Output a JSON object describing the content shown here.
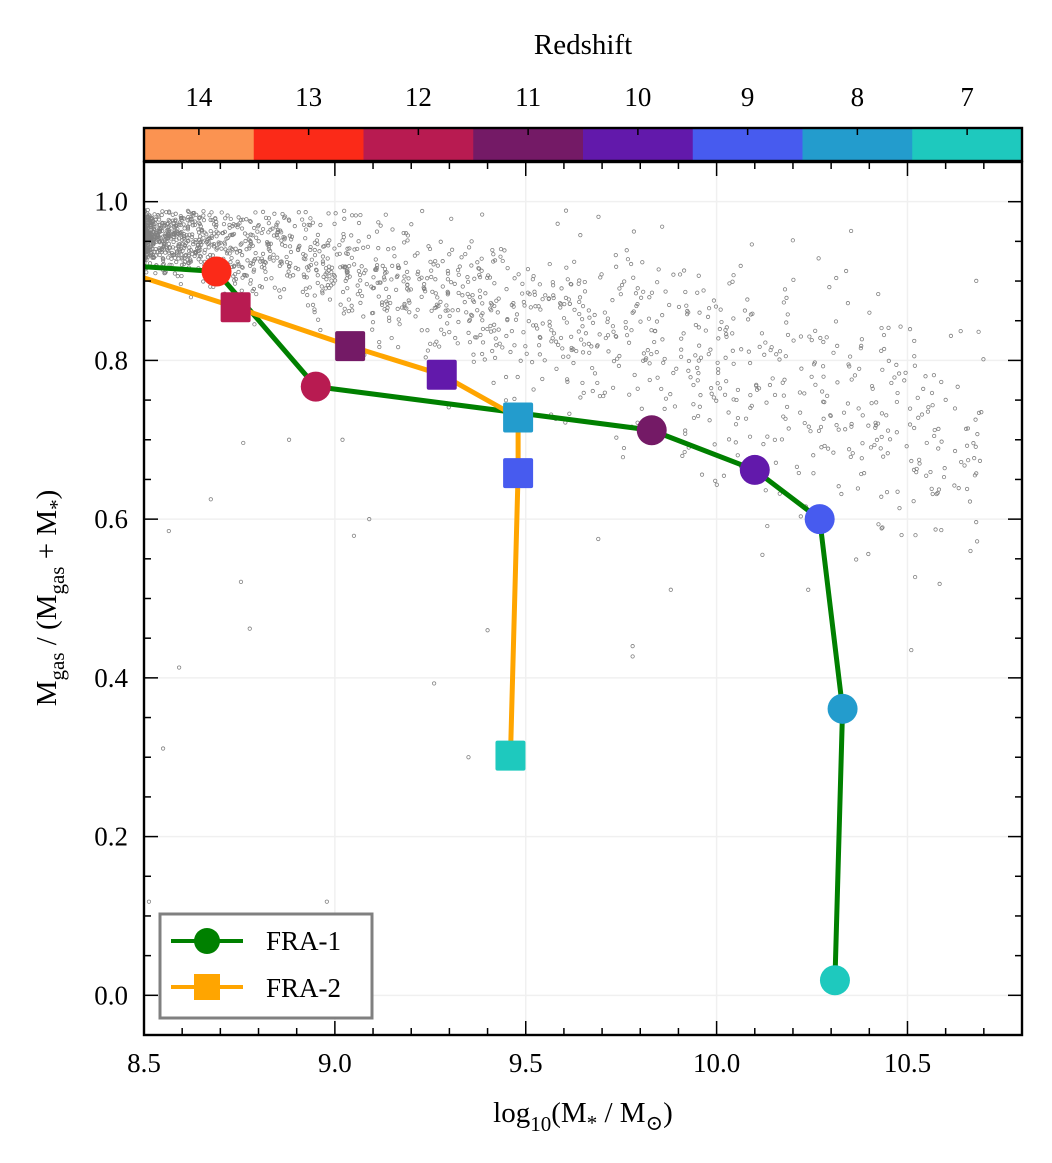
{
  "chart_data": {
    "type": "line",
    "title": "",
    "xlabel": "log10(M* / M⊙)",
    "xlabel_parts": {
      "pre": "log",
      "sub": "10",
      "mid": "(M",
      "sub2": "*",
      "post": " / M",
      "sub3": "⊙",
      "end": ")"
    },
    "ylabel": "Mgas / (Mgas + M*)",
    "ylabel_parts": {
      "m": "M",
      "gas": "gas",
      "mid": " / (M",
      "gas2": "gas",
      "plus": " + M",
      "star": "*",
      "end": ")"
    },
    "xlim": [
      8.5,
      10.8
    ],
    "ylim": [
      -0.05,
      1.05
    ],
    "xticks": [
      8.5,
      9.0,
      9.5,
      10.0,
      10.5
    ],
    "xtick_labels": [
      "8.5",
      "9.0",
      "9.5",
      "10.0",
      "10.5"
    ],
    "yticks": [
      0.0,
      0.2,
      0.4,
      0.6,
      0.8,
      1.0
    ],
    "ytick_labels": [
      "0.0",
      "0.2",
      "0.4",
      "0.6",
      "0.8",
      "1.0"
    ],
    "grid": true,
    "legend_position": "bottom-left",
    "colorbar": {
      "label": "Redshift",
      "position": "top",
      "ticks": [
        "14",
        "13",
        "12",
        "11",
        "10",
        "9",
        "8",
        "7"
      ],
      "colors": [
        "#fb9351",
        "#fb2a18",
        "#b81b51",
        "#741a66",
        "#6219ab",
        "#475bef",
        "#239ccd",
        "#1ec9be"
      ]
    },
    "series": [
      {
        "name": "FRA-1",
        "color": "#008000",
        "marker": "circle",
        "line_start": {
          "x": 8.5,
          "y": 0.918
        },
        "points": [
          {
            "z": 13,
            "x": 8.69,
            "y": 0.912
          },
          {
            "z": 12,
            "x": 8.95,
            "y": 0.767
          },
          {
            "z": 11,
            "x": 9.83,
            "y": 0.712
          },
          {
            "z": 10,
            "x": 10.1,
            "y": 0.662
          },
          {
            "z": 9,
            "x": 10.27,
            "y": 0.6
          },
          {
            "z": 8,
            "x": 10.33,
            "y": 0.361
          },
          {
            "z": 7,
            "x": 10.31,
            "y": 0.019
          }
        ]
      },
      {
        "name": "FRA-2",
        "color": "#ffa500",
        "marker": "square",
        "line_start": {
          "x": 8.5,
          "y": 0.904
        },
        "points": [
          {
            "z": 12,
            "x": 8.74,
            "y": 0.867
          },
          {
            "z": 11,
            "x": 9.04,
            "y": 0.818
          },
          {
            "z": 10,
            "x": 9.28,
            "y": 0.782
          },
          {
            "z": 8,
            "x": 9.48,
            "y": 0.728
          },
          {
            "z": 9,
            "x": 9.48,
            "y": 0.658
          },
          {
            "z": 7,
            "x": 9.46,
            "y": 0.302
          }
        ]
      }
    ],
    "background_population": {
      "name": "simulated galaxies",
      "color": "#808080",
      "marker": "open-circle",
      "approx_count": 1800,
      "dense_trend": {
        "x_range": [
          8.5,
          10.7
        ],
        "y_at_x_start": 0.955,
        "y_at_x_end": 0.69,
        "scatter": 0.05,
        "concentration_toward": 8.5
      },
      "outliers": [
        {
          "x": 8.565,
          "y": 0.585
        },
        {
          "x": 8.754,
          "y": 0.521
        },
        {
          "x": 8.777,
          "y": 0.462
        },
        {
          "x": 8.592,
          "y": 0.413
        },
        {
          "x": 8.55,
          "y": 0.311
        },
        {
          "x": 8.979,
          "y": 0.118
        },
        {
          "x": 8.513,
          "y": 0.118
        },
        {
          "x": 9.05,
          "y": 0.579
        },
        {
          "x": 9.09,
          "y": 0.6
        },
        {
          "x": 8.675,
          "y": 0.625
        },
        {
          "x": 9.4,
          "y": 0.46
        },
        {
          "x": 9.35,
          "y": 0.3
        },
        {
          "x": 9.26,
          "y": 0.393
        },
        {
          "x": 10.52,
          "y": 0.527
        },
        {
          "x": 10.51,
          "y": 0.435
        },
        {
          "x": 9.88,
          "y": 0.511
        },
        {
          "x": 9.69,
          "y": 0.575
        },
        {
          "x": 9.78,
          "y": 0.427
        },
        {
          "x": 10.12,
          "y": 0.555
        },
        {
          "x": 10.24,
          "y": 0.511
        },
        {
          "x": 9.78,
          "y": 0.44
        },
        {
          "x": 9.02,
          "y": 0.7
        },
        {
          "x": 8.88,
          "y": 0.7
        },
        {
          "x": 8.76,
          "y": 0.696
        }
      ]
    }
  },
  "legend": {
    "items": [
      {
        "label": "FRA-1",
        "color": "#008000",
        "marker": "circle"
      },
      {
        "label": "FRA-2",
        "color": "#ffa500",
        "marker": "square"
      }
    ]
  }
}
